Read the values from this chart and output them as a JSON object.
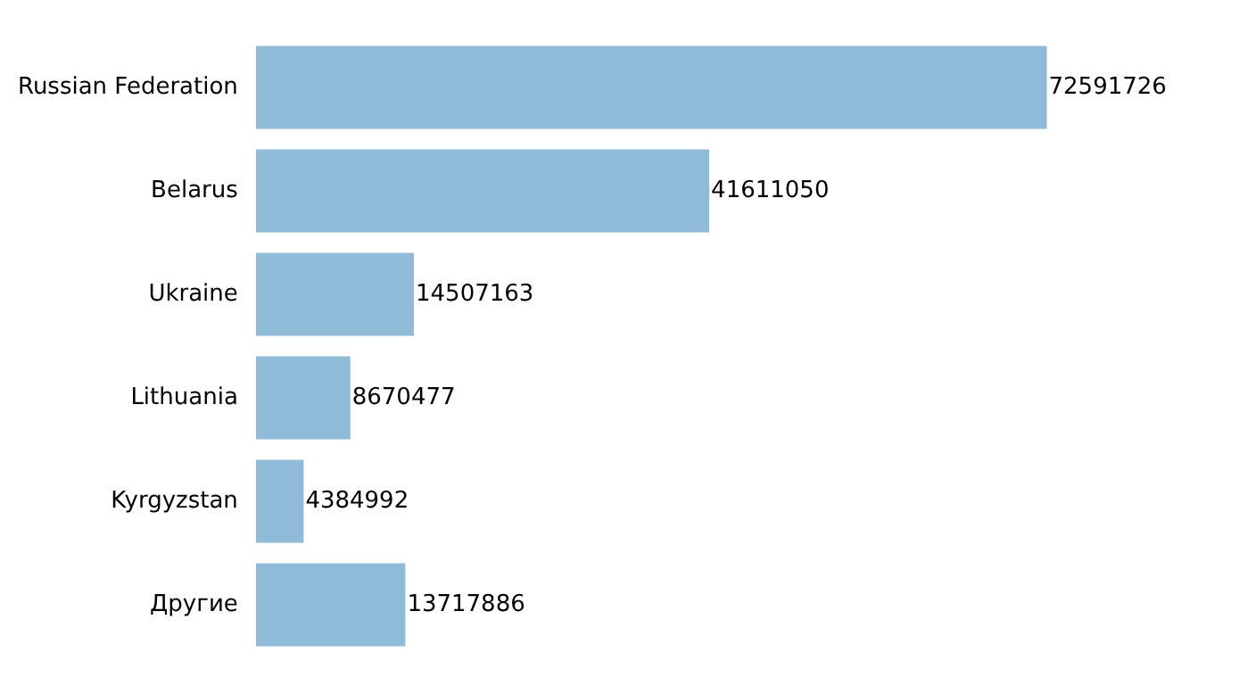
{
  "chart_data": {
    "type": "bar",
    "orientation": "horizontal",
    "categories": [
      "Russian Federation",
      "Belarus",
      "Ukraine",
      "Lithuania",
      "Kyrgyzstan",
      "Другие"
    ],
    "values": [
      72591726,
      41611050,
      14507163,
      8670477,
      4384992,
      13717886
    ],
    "color": "#8fbbd9",
    "data_labels": true,
    "grid": false,
    "legend": false
  }
}
